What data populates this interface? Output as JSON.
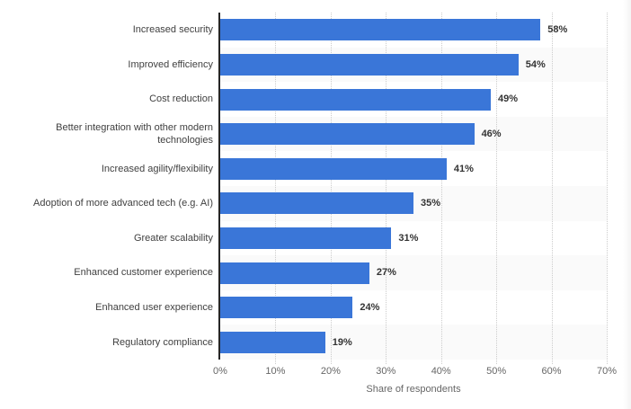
{
  "chart_data": {
    "type": "bar",
    "orientation": "horizontal",
    "title": "",
    "categories": [
      "Increased security",
      "Improved efficiency",
      "Cost reduction",
      "Better integration with other modern technologies",
      "Increased agility/flexibility",
      "Adoption of more advanced tech (e.g. AI)",
      "Greater scalability",
      "Enhanced customer experience",
      "Enhanced user experience",
      "Regulatory compliance"
    ],
    "values": [
      58,
      54,
      49,
      46,
      41,
      35,
      31,
      27,
      24,
      19
    ],
    "value_labels": [
      "58%",
      "54%",
      "49%",
      "46%",
      "41%",
      "35%",
      "31%",
      "27%",
      "24%",
      "19%"
    ],
    "xlabel": "Share of respondents",
    "ylabel": "",
    "xlim": [
      0,
      70
    ],
    "x_ticks": [
      "0%",
      "10%",
      "20%",
      "30%",
      "40%",
      "50%",
      "60%",
      "70%"
    ],
    "x_tick_values": [
      0,
      10,
      20,
      30,
      40,
      50,
      60,
      70
    ],
    "grid": "vertical-dotted",
    "legend": "none",
    "colors": {
      "bar": "#3a76d8",
      "row_band": "#fafafa",
      "gridline": "#cccccc",
      "axis_line": "#262626",
      "category_text": "#404040",
      "value_text": "#333333",
      "tick_text": "#666666"
    }
  }
}
